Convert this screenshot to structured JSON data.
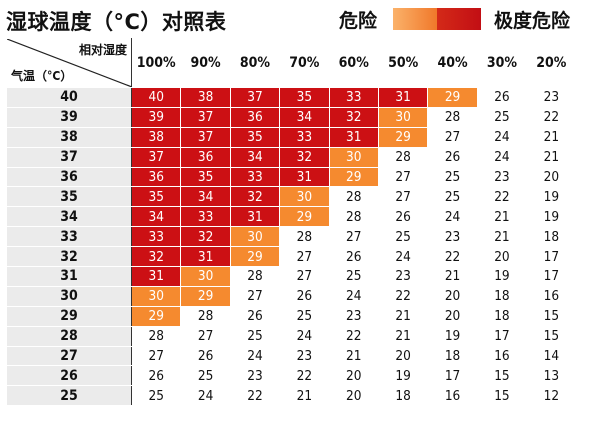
{
  "title": "湿球温度（°C）对照表",
  "legend": {
    "danger_label": "危险",
    "extreme_label": "极度危险",
    "danger_gradient": [
      "#fbb26a",
      "#f0782a"
    ],
    "extreme_gradient": [
      "#d42a18",
      "#c20e14"
    ]
  },
  "colors": {
    "danger": "#f58a2f",
    "extreme": "#cc1014",
    "normal": "#ffffff",
    "temp_bg": "#ebebeb"
  },
  "corner": {
    "humidity_label": "相对湿度",
    "temp_label": "气温（°C）"
  },
  "humidity_headers": [
    "100%",
    "90%",
    "80%",
    "70%",
    "60%",
    "50%",
    "40%",
    "30%",
    "20%"
  ],
  "rows": [
    {
      "temp": "40",
      "values": [
        "40",
        "38",
        "37",
        "35",
        "33",
        "31",
        "29",
        "26",
        "23"
      ],
      "levels": [
        "E",
        "E",
        "E",
        "E",
        "E",
        "E",
        "D",
        "N",
        "N"
      ]
    },
    {
      "temp": "39",
      "values": [
        "39",
        "37",
        "36",
        "34",
        "32",
        "30",
        "28",
        "25",
        "22"
      ],
      "levels": [
        "E",
        "E",
        "E",
        "E",
        "E",
        "D",
        "N",
        "N",
        "N"
      ]
    },
    {
      "temp": "38",
      "values": [
        "38",
        "37",
        "35",
        "33",
        "31",
        "29",
        "27",
        "24",
        "21"
      ],
      "levels": [
        "E",
        "E",
        "E",
        "E",
        "E",
        "D",
        "N",
        "N",
        "N"
      ]
    },
    {
      "temp": "37",
      "values": [
        "37",
        "36",
        "34",
        "32",
        "30",
        "28",
        "26",
        "24",
        "21"
      ],
      "levels": [
        "E",
        "E",
        "E",
        "E",
        "D",
        "N",
        "N",
        "N",
        "N"
      ]
    },
    {
      "temp": "36",
      "values": [
        "36",
        "35",
        "33",
        "31",
        "29",
        "27",
        "25",
        "23",
        "20"
      ],
      "levels": [
        "E",
        "E",
        "E",
        "E",
        "D",
        "N",
        "N",
        "N",
        "N"
      ]
    },
    {
      "temp": "35",
      "values": [
        "35",
        "34",
        "32",
        "30",
        "28",
        "27",
        "25",
        "22",
        "19"
      ],
      "levels": [
        "E",
        "E",
        "E",
        "D",
        "N",
        "N",
        "N",
        "N",
        "N"
      ]
    },
    {
      "temp": "34",
      "values": [
        "34",
        "33",
        "31",
        "29",
        "28",
        "26",
        "24",
        "21",
        "19"
      ],
      "levels": [
        "E",
        "E",
        "E",
        "D",
        "N",
        "N",
        "N",
        "N",
        "N"
      ]
    },
    {
      "temp": "33",
      "values": [
        "33",
        "32",
        "30",
        "28",
        "27",
        "25",
        "23",
        "21",
        "18"
      ],
      "levels": [
        "E",
        "E",
        "D",
        "N",
        "N",
        "N",
        "N",
        "N",
        "N"
      ]
    },
    {
      "temp": "32",
      "values": [
        "32",
        "31",
        "29",
        "27",
        "26",
        "24",
        "22",
        "20",
        "17"
      ],
      "levels": [
        "E",
        "E",
        "D",
        "N",
        "N",
        "N",
        "N",
        "N",
        "N"
      ]
    },
    {
      "temp": "31",
      "values": [
        "31",
        "30",
        "28",
        "27",
        "25",
        "23",
        "21",
        "19",
        "17"
      ],
      "levels": [
        "E",
        "D",
        "N",
        "N",
        "N",
        "N",
        "N",
        "N",
        "N"
      ]
    },
    {
      "temp": "30",
      "values": [
        "30",
        "29",
        "27",
        "26",
        "24",
        "22",
        "20",
        "18",
        "16"
      ],
      "levels": [
        "D",
        "D",
        "N",
        "N",
        "N",
        "N",
        "N",
        "N",
        "N"
      ]
    },
    {
      "temp": "29",
      "values": [
        "29",
        "28",
        "26",
        "25",
        "23",
        "21",
        "20",
        "18",
        "15"
      ],
      "levels": [
        "D",
        "N",
        "N",
        "N",
        "N",
        "N",
        "N",
        "N",
        "N"
      ]
    },
    {
      "temp": "28",
      "values": [
        "28",
        "27",
        "25",
        "24",
        "22",
        "21",
        "19",
        "17",
        "15"
      ],
      "levels": [
        "N",
        "N",
        "N",
        "N",
        "N",
        "N",
        "N",
        "N",
        "N"
      ]
    },
    {
      "temp": "27",
      "values": [
        "27",
        "26",
        "24",
        "23",
        "21",
        "20",
        "18",
        "16",
        "14"
      ],
      "levels": [
        "N",
        "N",
        "N",
        "N",
        "N",
        "N",
        "N",
        "N",
        "N"
      ]
    },
    {
      "temp": "26",
      "values": [
        "26",
        "25",
        "23",
        "22",
        "20",
        "19",
        "17",
        "15",
        "13"
      ],
      "levels": [
        "N",
        "N",
        "N",
        "N",
        "N",
        "N",
        "N",
        "N",
        "N"
      ]
    },
    {
      "temp": "25",
      "values": [
        "25",
        "24",
        "22",
        "21",
        "20",
        "18",
        "16",
        "15",
        "12"
      ],
      "levels": [
        "N",
        "N",
        "N",
        "N",
        "N",
        "N",
        "N",
        "N",
        "N"
      ]
    }
  ]
}
